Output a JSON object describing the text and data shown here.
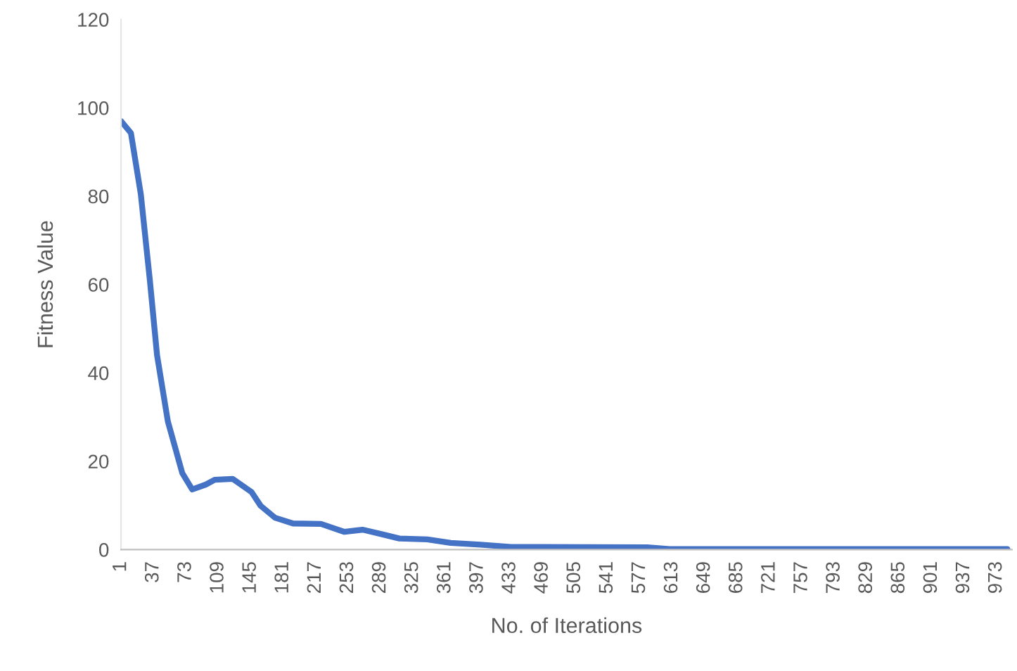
{
  "chart_data": {
    "type": "line",
    "xlabel": "No. of Iterations",
    "ylabel": "Fitness Value",
    "x": [
      1,
      12,
      23,
      33,
      41,
      53,
      69,
      80,
      95,
      105,
      125,
      146,
      156,
      172,
      192,
      223,
      249,
      269,
      290,
      310,
      341,
      367,
      400,
      434,
      585,
      610,
      985
    ],
    "series": [
      {
        "color": "#4472c4",
        "values": [
          97,
          94.3,
          80.4,
          61,
          44,
          29,
          17.3,
          13.6,
          14.7,
          15.8,
          16,
          13,
          9.9,
          7.2,
          5.9,
          5.8,
          4,
          4.5,
          3.5,
          2.5,
          2.3,
          1.5,
          1.1,
          0.6,
          0.5,
          0.1,
          0.1
        ]
      }
    ],
    "xlim": [
      1,
      990
    ],
    "ylim": [
      0,
      120
    ],
    "xticks": [
      1,
      37,
      73,
      109,
      145,
      181,
      217,
      253,
      289,
      325,
      361,
      397,
      433,
      469,
      505,
      541,
      577,
      613,
      649,
      685,
      721,
      757,
      793,
      829,
      865,
      901,
      937,
      973
    ],
    "yticks": [
      0,
      20,
      40,
      60,
      80,
      100,
      120
    ],
    "grid": false,
    "legend": false,
    "marker": "none",
    "line_style": "solid"
  }
}
